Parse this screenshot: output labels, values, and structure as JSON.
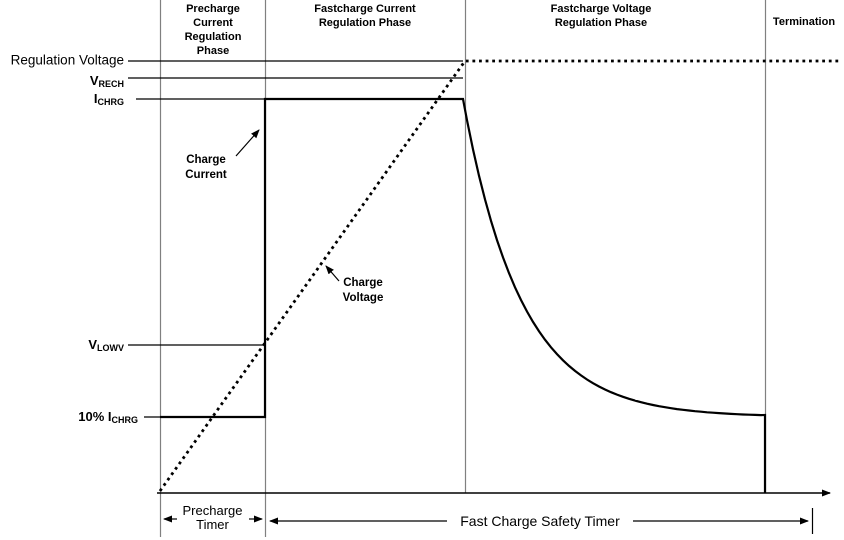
{
  "phases": {
    "precharge": "Precharge\nCurrent\nRegulation\nPhase",
    "fastcharge_current": "Fastcharge Current\nRegulation Phase",
    "fastcharge_voltage": "Fastcharge Voltage\nRegulation Phase",
    "termination": "Termination"
  },
  "levels": {
    "regulation_voltage": "Regulation Voltage",
    "v_rech": {
      "base": "V",
      "sub": "RECH"
    },
    "i_chrg": {
      "base": "I",
      "sub": "CHRG"
    },
    "v_lowv": {
      "base": "V",
      "sub": "LOWV"
    },
    "pct_i_chrg": {
      "base": "10% I",
      "sub": "CHRG"
    }
  },
  "curves": {
    "charge_current": "Charge\nCurrent",
    "charge_voltage": "Charge\nVoltage"
  },
  "timers": {
    "precharge_timer": "Precharge\nTimer",
    "fast_charge_safety_timer": "Fast Charge Safety Timer"
  },
  "colors": {
    "ink": "#000000",
    "divider": "#808080",
    "background": "#ffffff"
  }
}
